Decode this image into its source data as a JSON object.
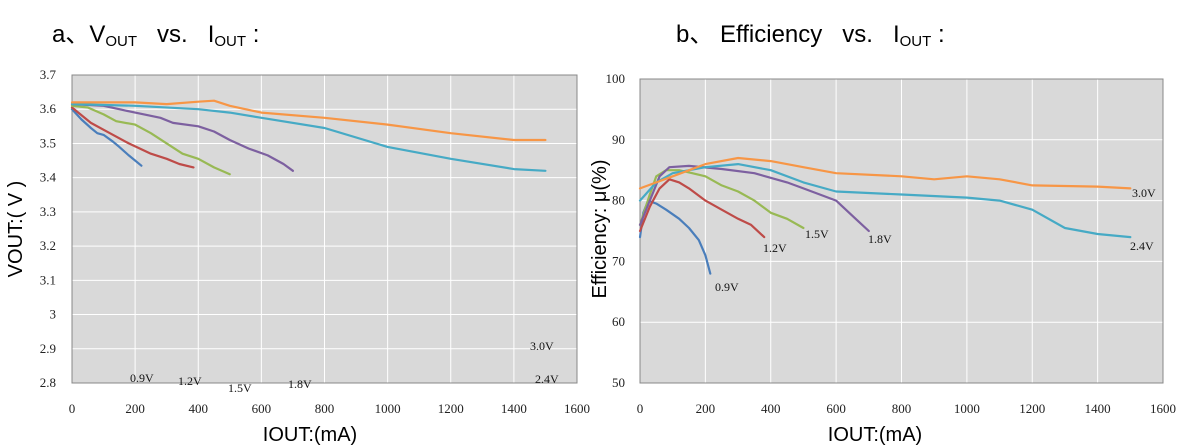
{
  "headings": {
    "a": {
      "prefix": "a、V",
      "sub1": "OUT",
      "mid": "   vs.   I",
      "sub2": "OUT",
      "suffix": " :"
    },
    "b": {
      "prefix": "b、 Efficiency   vs.   I",
      "sub2": "OUT",
      "suffix": " :"
    }
  },
  "colors": {
    "plot_bg": "#d9d9d9",
    "grid": "#ffffff",
    "0.9V": "#4a7ebb",
    "1.2V": "#be4b48",
    "1.5V": "#98b954",
    "1.8V": "#7d60a0",
    "2.4V": "#46aac5",
    "3.0V": "#f79646"
  },
  "chart_data": [
    {
      "type": "line",
      "title": "",
      "xlabel": "IOUT:(mA)",
      "ylabel": "VOUT:( V )",
      "xlim": [
        0,
        1600
      ],
      "ylim": [
        2.8,
        3.7
      ],
      "x_ticks": [
        "0",
        "200",
        "400",
        "600",
        "800",
        "1000",
        "1200",
        "1400",
        "1600"
      ],
      "y_ticks": [
        "2.8",
        "2.9",
        "3",
        "3.1",
        "3.2",
        "3.3",
        "3.4",
        "3.5",
        "3.6",
        "3.7"
      ],
      "grid": true,
      "series": [
        {
          "name": "0.9V",
          "points": [
            [
              0,
              3.6
            ],
            [
              30,
              3.57
            ],
            [
              60,
              3.545
            ],
            [
              80,
              3.53
            ],
            [
              100,
              3.525
            ],
            [
              130,
              3.505
            ],
            [
              150,
              3.49
            ],
            [
              180,
              3.465
            ],
            [
              220,
              3.435
            ]
          ]
        },
        {
          "name": "1.2V",
          "points": [
            [
              0,
              3.605
            ],
            [
              60,
              3.56
            ],
            [
              120,
              3.53
            ],
            [
              180,
              3.5
            ],
            [
              250,
              3.47
            ],
            [
              300,
              3.455
            ],
            [
              340,
              3.44
            ],
            [
              385,
              3.43
            ]
          ]
        },
        {
          "name": "1.5V",
          "points": [
            [
              0,
              3.61
            ],
            [
              50,
              3.605
            ],
            [
              100,
              3.585
            ],
            [
              140,
              3.565
            ],
            [
              200,
              3.555
            ],
            [
              250,
              3.53
            ],
            [
              300,
              3.5
            ],
            [
              350,
              3.47
            ],
            [
              400,
              3.455
            ],
            [
              450,
              3.43
            ],
            [
              500,
              3.41
            ]
          ]
        },
        {
          "name": "1.8V",
          "points": [
            [
              0,
              3.615
            ],
            [
              100,
              3.61
            ],
            [
              150,
              3.6
            ],
            [
              200,
              3.59
            ],
            [
              280,
              3.575
            ],
            [
              320,
              3.56
            ],
            [
              400,
              3.55
            ],
            [
              450,
              3.535
            ],
            [
              500,
              3.51
            ],
            [
              560,
              3.485
            ],
            [
              620,
              3.465
            ],
            [
              670,
              3.44
            ],
            [
              700,
              3.42
            ]
          ]
        },
        {
          "name": "2.4V",
          "points": [
            [
              0,
              3.615
            ],
            [
              200,
              3.61
            ],
            [
              400,
              3.6
            ],
            [
              500,
              3.59
            ],
            [
              600,
              3.575
            ],
            [
              800,
              3.545
            ],
            [
              1000,
              3.49
            ],
            [
              1200,
              3.455
            ],
            [
              1400,
              3.425
            ],
            [
              1500,
              3.42
            ]
          ]
        },
        {
          "name": "3.0V",
          "points": [
            [
              0,
              3.62
            ],
            [
              200,
              3.62
            ],
            [
              300,
              3.615
            ],
            [
              400,
              3.622
            ],
            [
              450,
              3.625
            ],
            [
              500,
              3.61
            ],
            [
              600,
              3.59
            ],
            [
              800,
              3.575
            ],
            [
              1000,
              3.555
            ],
            [
              1200,
              3.53
            ],
            [
              1400,
              3.51
            ],
            [
              1500,
              3.51
            ]
          ]
        }
      ]
    },
    {
      "type": "line",
      "title": "",
      "xlabel": "IOUT:(mA)",
      "ylabel": "Efficiency: μ(%)",
      "xlim": [
        0,
        1600
      ],
      "ylim": [
        50,
        100
      ],
      "x_ticks": [
        "0",
        "200",
        "400",
        "600",
        "800",
        "1000",
        "1200",
        "1400",
        "1600"
      ],
      "y_ticks": [
        "50",
        "60",
        "70",
        "80",
        "90",
        "100"
      ],
      "grid": true,
      "series": [
        {
          "name": "0.9V",
          "points": [
            [
              0,
              74
            ],
            [
              10,
              78
            ],
            [
              25,
              80
            ],
            [
              50,
              79.5
            ],
            [
              80,
              78.5
            ],
            [
              120,
              77
            ],
            [
              150,
              75.5
            ],
            [
              180,
              73.5
            ],
            [
              200,
              71
            ],
            [
              215,
              68
            ]
          ]
        },
        {
          "name": "1.2V",
          "points": [
            [
              0,
              75
            ],
            [
              30,
              79
            ],
            [
              60,
              82
            ],
            [
              90,
              83.5
            ],
            [
              120,
              83
            ],
            [
              150,
              82
            ],
            [
              200,
              80
            ],
            [
              250,
              78.5
            ],
            [
              300,
              77
            ],
            [
              340,
              76
            ],
            [
              380,
              74
            ]
          ]
        },
        {
          "name": "1.5V",
          "points": [
            [
              0,
              76
            ],
            [
              30,
              81
            ],
            [
              50,
              84
            ],
            [
              80,
              85
            ],
            [
              120,
              85
            ],
            [
              160,
              84.5
            ],
            [
              200,
              84
            ],
            [
              250,
              82.5
            ],
            [
              300,
              81.5
            ],
            [
              350,
              80
            ],
            [
              400,
              78
            ],
            [
              450,
              77
            ],
            [
              500,
              75.5
            ]
          ]
        },
        {
          "name": "1.8V",
          "points": [
            [
              0,
              76
            ],
            [
              30,
              80
            ],
            [
              60,
              84
            ],
            [
              90,
              85.5
            ],
            [
              150,
              85.7
            ],
            [
              250,
              85.2
            ],
            [
              350,
              84.5
            ],
            [
              450,
              83
            ],
            [
              500,
              82
            ],
            [
              550,
              81
            ],
            [
              600,
              80
            ],
            [
              640,
              78
            ],
            [
              670,
              76.5
            ],
            [
              700,
              75
            ]
          ]
        },
        {
          "name": "2.4V",
          "points": [
            [
              0,
              80
            ],
            [
              50,
              83
            ],
            [
              100,
              84.5
            ],
            [
              200,
              85.5
            ],
            [
              300,
              86
            ],
            [
              400,
              85
            ],
            [
              500,
              83
            ],
            [
              600,
              81.5
            ],
            [
              800,
              81
            ],
            [
              1000,
              80.5
            ],
            [
              1100,
              80
            ],
            [
              1200,
              78.5
            ],
            [
              1300,
              75.5
            ],
            [
              1400,
              74.5
            ],
            [
              1500,
              74
            ]
          ]
        },
        {
          "name": "3.0V",
          "points": [
            [
              0,
              82
            ],
            [
              50,
              83
            ],
            [
              100,
              84
            ],
            [
              200,
              86
            ],
            [
              300,
              87
            ],
            [
              400,
              86.5
            ],
            [
              500,
              85.5
            ],
            [
              600,
              84.5
            ],
            [
              800,
              84
            ],
            [
              900,
              83.5
            ],
            [
              1000,
              84
            ],
            [
              1100,
              83.5
            ],
            [
              1200,
              82.5
            ],
            [
              1400,
              82.3
            ],
            [
              1500,
              82
            ]
          ]
        }
      ]
    }
  ]
}
